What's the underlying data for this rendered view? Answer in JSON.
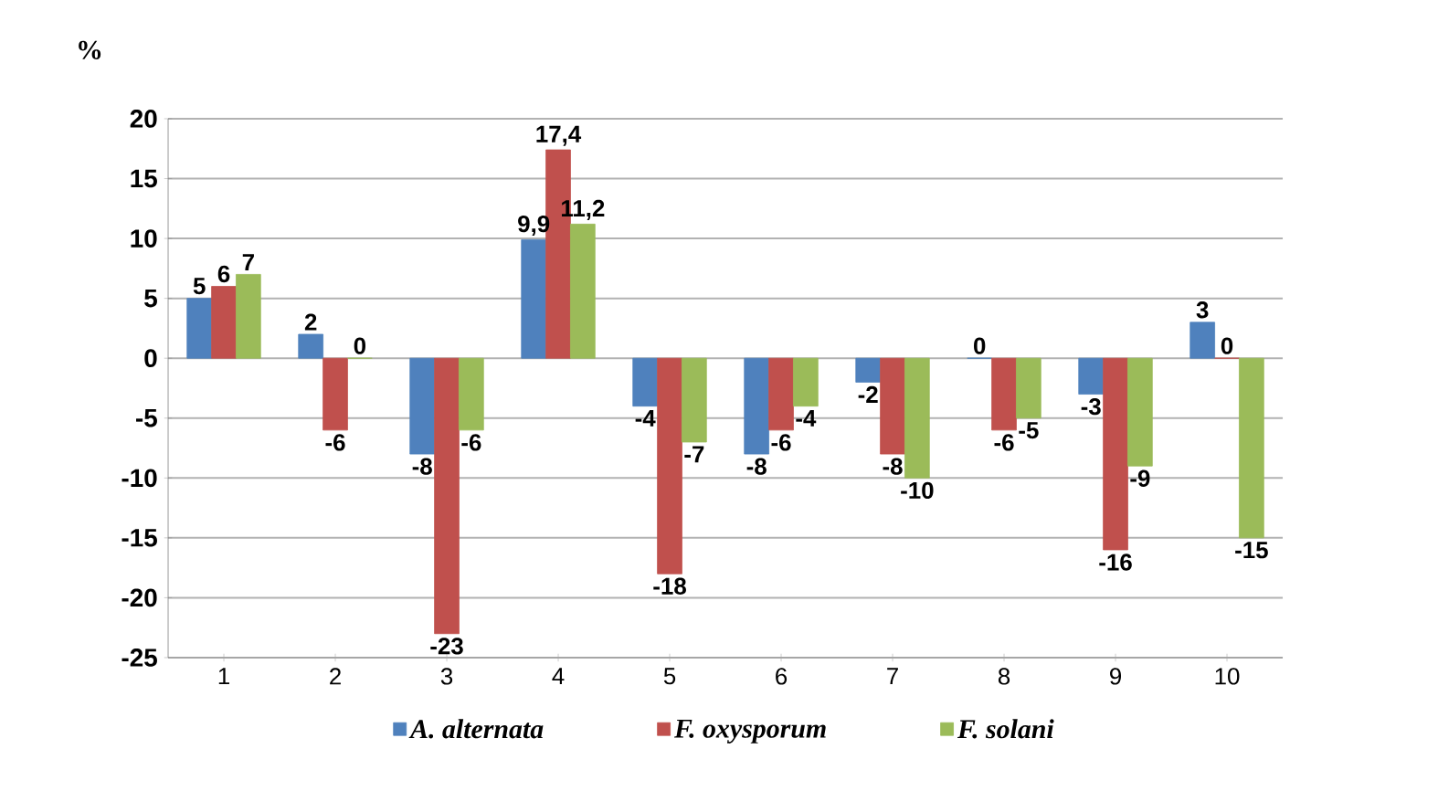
{
  "chart_data": {
    "type": "bar",
    "ylabel": "%",
    "categories": [
      "1",
      "2",
      "3",
      "4",
      "5",
      "6",
      "7",
      "8",
      "9",
      "10"
    ],
    "series": [
      {
        "name": "A. alternata",
        "color": "#4f81bd",
        "values": [
          5,
          2,
          -8,
          9.9,
          -4,
          -8,
          -2,
          0,
          -3,
          3
        ],
        "value_labels": [
          "5",
          "2",
          "-8",
          "9,9",
          "-4",
          "-8",
          "-2",
          "0",
          "-3",
          "3"
        ]
      },
      {
        "name": "F. oxysporum",
        "color": "#c0504d",
        "values": [
          6,
          -6,
          -23,
          17.4,
          -18,
          -6,
          -8,
          -6,
          -16,
          0
        ],
        "value_labels": [
          "6",
          "-6",
          "-23",
          "17,4",
          "-18",
          "-6",
          "-8",
          "-6",
          "-16",
          "0"
        ]
      },
      {
        "name": "F. solani",
        "color": "#9bbb59",
        "values": [
          7,
          0,
          -6,
          11.2,
          -7,
          -4,
          -10,
          -5,
          -9,
          -15
        ],
        "value_labels": [
          "7",
          "0",
          "-6",
          "11,2",
          "-7",
          "-4",
          "-10",
          "-5",
          "-9",
          "-15"
        ]
      }
    ],
    "ylim": [
      -25,
      20
    ],
    "yticks": [
      -25,
      -20,
      -15,
      -10,
      -5,
      0,
      5,
      10,
      15,
      20
    ],
    "grid": "y",
    "legend": "bottom"
  }
}
